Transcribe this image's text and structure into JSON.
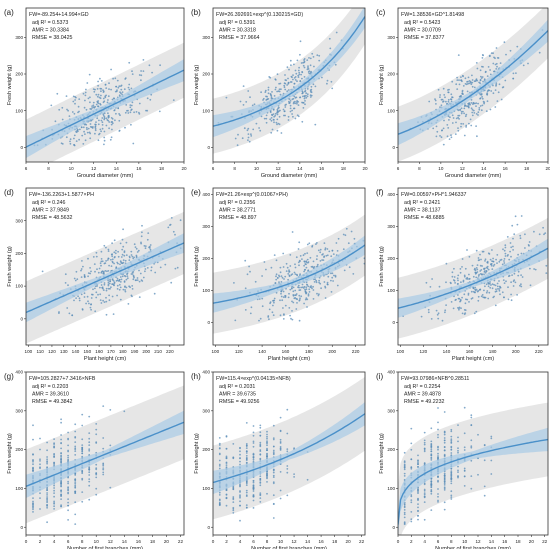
{
  "chart_data": [
    {
      "panel": "(a)",
      "type": "scatter",
      "model": "linear",
      "equation": "FW=-89.254+14.994×GD",
      "stats": [
        "adj R² = 0.5373",
        "AMR = 30.3384",
        "RMSE = 38.0425"
      ],
      "xlabel": "Ground diameter (mm)",
      "ylabel": "Fresh weight (g)",
      "xlim": [
        6,
        20
      ],
      "ylim": [
        -40,
        380
      ],
      "xticks": [
        6,
        8,
        10,
        12,
        14,
        16,
        18,
        20
      ],
      "yticks": [
        0,
        100,
        200,
        300
      ],
      "fit": {
        "coef": [
          -89.254,
          14.994
        ]
      },
      "band_halfwidth": 75,
      "points": {
        "x_mean": 12.8,
        "x_sd": 2.1,
        "noise": 38
      }
    },
    {
      "panel": "(b)",
      "type": "scatter",
      "model": "exp",
      "equation": "FW=26.392691×exp^(0.130215×GD)",
      "stats": [
        "adj R² = 0.5391",
        "AMR = 30.3318",
        "RMSE = 37.9664"
      ],
      "xlabel": "Ground diameter (mm)",
      "ylabel": "Fresh weight (g)",
      "xlim": [
        6,
        20
      ],
      "ylim": [
        -40,
        380
      ],
      "xticks": [
        6,
        8,
        10,
        12,
        14,
        16,
        18,
        20
      ],
      "yticks": [
        0,
        100,
        200,
        300
      ],
      "fit": {
        "coef": [
          26.392691,
          0.130215
        ]
      },
      "band_halfwidth": 75,
      "points": {
        "x_mean": 12.8,
        "x_sd": 2.1,
        "noise": 38
      }
    },
    {
      "panel": "(c)",
      "type": "scatter",
      "model": "power",
      "equation": "FW=1.38536×GD^1.81498",
      "stats": [
        "adj R² = 0.5423",
        "AMR = 30.0709",
        "RMSE = 37.8377"
      ],
      "xlabel": "Ground diameter (mm)",
      "ylabel": "Fresh weight (g)",
      "xlim": [
        6,
        20
      ],
      "ylim": [
        -40,
        380
      ],
      "xticks": [
        6,
        8,
        10,
        12,
        14,
        16,
        18,
        20
      ],
      "yticks": [
        0,
        100,
        200,
        300
      ],
      "fit": {
        "coef": [
          1.38536,
          1.81498
        ]
      },
      "band_halfwidth": 75,
      "points": {
        "x_mean": 12.8,
        "x_sd": 2.1,
        "noise": 38
      }
    },
    {
      "panel": "(d)",
      "type": "scatter",
      "model": "linear",
      "equation": "FW=-136.2263+1.5877×PH",
      "stats": [
        "adj R² = 0.246",
        "AMR = 37.9849",
        "RMSE = 48.5632"
      ],
      "xlabel": "Plant height (cm)",
      "ylabel": "Fresh weight (g)",
      "xlim": [
        98,
        232
      ],
      "ylim": [
        -80,
        400
      ],
      "xticks": [
        100,
        110,
        120,
        130,
        140,
        150,
        160,
        170,
        180,
        190,
        200,
        210,
        220
      ],
      "yticks": [
        0,
        100,
        200,
        300
      ],
      "fit": {
        "coef": [
          -136.2263,
          1.5877
        ]
      },
      "band_halfwidth": 95,
      "points": {
        "x_mean": 175,
        "x_sd": 22,
        "noise": 48
      }
    },
    {
      "panel": "(e)",
      "type": "scatter",
      "model": "exp",
      "equation": "FW=21.26×exp^(0.01067×PH)",
      "stats": [
        "adj R² = 0.2356",
        "AMR = 38.2771",
        "RMSE = 48.897"
      ],
      "xlabel": "Plant height (cm)",
      "ylabel": "Fresh weight (g)",
      "xlim": [
        98,
        228
      ],
      "ylim": [
        -70,
        420
      ],
      "xticks": [
        100,
        120,
        140,
        160,
        180,
        200,
        220
      ],
      "yticks": [
        0,
        100,
        200,
        300,
        400
      ],
      "fit": {
        "coef": [
          21.26,
          0.01067
        ]
      },
      "band_halfwidth": 95,
      "points": {
        "x_mean": 175,
        "x_sd": 22,
        "noise": 48
      }
    },
    {
      "panel": "(f)",
      "type": "scatter",
      "model": "power",
      "equation": "FW=0.00597×PH^1.946337",
      "stats": [
        "adj R² = 0.2421",
        "AMR = 38.1137",
        "RMSE = 48.6885"
      ],
      "xlabel": "Plant height (cm)",
      "ylabel": "Fresh weight (g)",
      "xlim": [
        98,
        228
      ],
      "ylim": [
        -70,
        420
      ],
      "xticks": [
        100,
        120,
        140,
        160,
        180,
        200,
        220
      ],
      "yticks": [
        0,
        100,
        200,
        300,
        400
      ],
      "fit": {
        "coef": [
          0.00597,
          1.946337
        ]
      },
      "band_halfwidth": 95,
      "points": {
        "x_mean": 175,
        "x_sd": 22,
        "noise": 48
      }
    },
    {
      "panel": "(g)",
      "type": "scatter",
      "model": "linear",
      "equation": "FW=105.2827+7.3416×NFB",
      "stats": [
        "adj R² = 0.2203",
        "AMR = 39.3610",
        "RMSE = 49.3842"
      ],
      "xlabel": "Number of first branches (mm)",
      "ylabel": "Fresh weight (g)",
      "xlim": [
        0,
        22.5
      ],
      "ylim": [
        -20,
        400
      ],
      "xticks": [
        0,
        2,
        4,
        6,
        8,
        10,
        12,
        14,
        16,
        18,
        20,
        22
      ],
      "yticks": [
        0,
        100,
        200,
        300,
        400
      ],
      "fit": {
        "coef": [
          105.2827,
          7.3416
        ]
      },
      "band_halfwidth": 95,
      "points": {
        "x_int_max": 14,
        "x_mean": 5.5,
        "x_sd": 3.2,
        "noise": 49
      }
    },
    {
      "panel": "(h)",
      "type": "scatter",
      "model": "exp",
      "equation": "FW=115.4×exp^(0.04135×NFB)",
      "stats": [
        "adj R² = 0.2031",
        "AMR = 39.6735",
        "RMSE = 49.9256"
      ],
      "xlabel": "Number of first branches (mm)",
      "ylabel": "Fresh weight (g)",
      "xlim": [
        0,
        22.5
      ],
      "ylim": [
        -20,
        400
      ],
      "xticks": [
        0,
        2,
        4,
        6,
        8,
        10,
        12,
        14,
        16,
        18,
        20,
        22
      ],
      "yticks": [
        0,
        100,
        200,
        300,
        400
      ],
      "fit": {
        "coef": [
          115.4,
          0.04135
        ]
      },
      "band_halfwidth": 95,
      "points": {
        "x_int_max": 14,
        "x_mean": 5.5,
        "x_sd": 3.2,
        "noise": 49
      }
    },
    {
      "panel": "(i)",
      "type": "scatter",
      "model": "power",
      "equation": "FW=93.07986×NFB^0.28511",
      "stats": [
        "adj R² = 0.2254",
        "AMR = 39.4878",
        "RMSE = 49.2232"
      ],
      "xlabel": "Number of first branches (mm)",
      "ylabel": "Fresh weight (g)",
      "xlim": [
        0,
        22.5
      ],
      "ylim": [
        -20,
        400
      ],
      "xticks": [
        0,
        2,
        4,
        6,
        8,
        10,
        12,
        14,
        16,
        18,
        20,
        22
      ],
      "yticks": [
        0,
        100,
        200,
        300,
        400
      ],
      "fit": {
        "coef": [
          93.07986,
          0.28511
        ]
      },
      "band_halfwidth": 95,
      "points": {
        "x_int_max": 14,
        "x_mean": 5.5,
        "x_sd": 3.2,
        "noise": 49
      }
    }
  ],
  "colors": {
    "points": "#5b8db8",
    "fit_line": "#4a90c9",
    "ci_band": "#a8cbe6",
    "prediction_band": "#e6e6e6",
    "axis": "#333333",
    "text": "#222222"
  }
}
